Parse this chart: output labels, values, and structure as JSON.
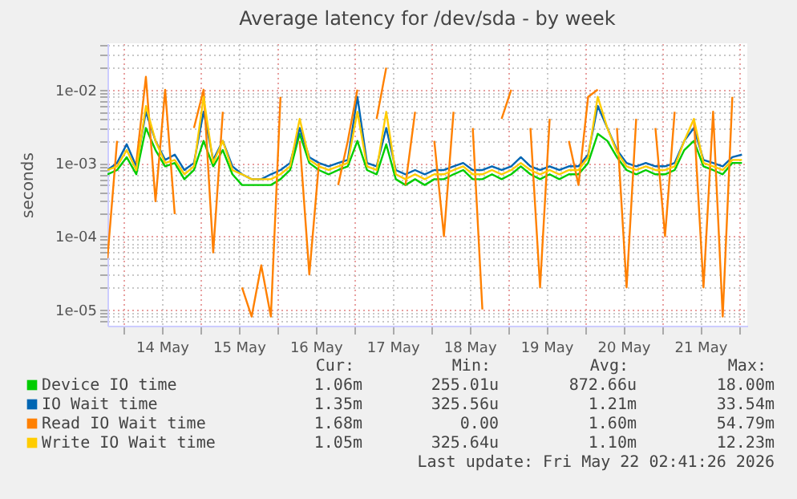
{
  "chart_data": {
    "type": "line",
    "title": "Average latency for /dev/sda - by week",
    "ylabel": "seconds",
    "log": "y",
    "grid": true,
    "legend": "bottom",
    "marker": "none",
    "line_style": "solid",
    "x": [
      "2026-05-13T19:00",
      "2026-05-13T22:00",
      "2026-05-14T01:00",
      "2026-05-14T04:00",
      "2026-05-14T07:00",
      "2026-05-14T10:00",
      "2026-05-14T13:00",
      "2026-05-14T16:00",
      "2026-05-14T19:00",
      "2026-05-14T22:00",
      "2026-05-15T01:00",
      "2026-05-15T04:00",
      "2026-05-15T07:00",
      "2026-05-15T10:00",
      "2026-05-15T13:00",
      "2026-05-15T16:00",
      "2026-05-15T19:00",
      "2026-05-15T22:00",
      "2026-05-16T01:00",
      "2026-05-16T04:00",
      "2026-05-16T07:00",
      "2026-05-16T10:00",
      "2026-05-16T13:00",
      "2026-05-16T16:00",
      "2026-05-16T19:00",
      "2026-05-16T22:00",
      "2026-05-17T01:00",
      "2026-05-17T04:00",
      "2026-05-17T07:00",
      "2026-05-17T10:00",
      "2026-05-17T13:00",
      "2026-05-17T16:00",
      "2026-05-17T19:00",
      "2026-05-17T22:00",
      "2026-05-18T01:00",
      "2026-05-18T04:00",
      "2026-05-18T07:00",
      "2026-05-18T10:00",
      "2026-05-18T13:00",
      "2026-05-18T16:00",
      "2026-05-18T19:00",
      "2026-05-18T22:00",
      "2026-05-19T01:00",
      "2026-05-19T04:00",
      "2026-05-19T07:00",
      "2026-05-19T10:00",
      "2026-05-19T13:00",
      "2026-05-19T16:00",
      "2026-05-19T19:00",
      "2026-05-19T22:00",
      "2026-05-20T01:00",
      "2026-05-20T04:00",
      "2026-05-20T07:00",
      "2026-05-20T10:00",
      "2026-05-20T13:00",
      "2026-05-20T16:00",
      "2026-05-20T19:00",
      "2026-05-20T22:00",
      "2026-05-21T01:00",
      "2026-05-21T04:00",
      "2026-05-21T07:00",
      "2026-05-21T10:00",
      "2026-05-21T13:00",
      "2026-05-21T16:00",
      "2026-05-21T19:00",
      "2026-05-21T22:00",
      "2026-05-22T01:00"
    ],
    "xlim": [
      "2026-05-13T19:00",
      "2026-05-22T02:40"
    ],
    "xticks": [
      {
        "value": "2026-05-14T00:00",
        "label": null
      },
      {
        "value": "2026-05-14T12:00",
        "label": "14 May"
      },
      {
        "value": "2026-05-15T00:00",
        "label": null
      },
      {
        "value": "2026-05-15T12:00",
        "label": "15 May"
      },
      {
        "value": "2026-05-16T00:00",
        "label": null
      },
      {
        "value": "2026-05-16T12:00",
        "label": "16 May"
      },
      {
        "value": "2026-05-17T00:00",
        "label": null
      },
      {
        "value": "2026-05-17T12:00",
        "label": "17 May"
      },
      {
        "value": "2026-05-18T00:00",
        "label": null
      },
      {
        "value": "2026-05-18T12:00",
        "label": "18 May"
      },
      {
        "value": "2026-05-19T00:00",
        "label": null
      },
      {
        "value": "2026-05-19T12:00",
        "label": "19 May"
      },
      {
        "value": "2026-05-20T00:00",
        "label": null
      },
      {
        "value": "2026-05-20T12:00",
        "label": "20 May"
      },
      {
        "value": "2026-05-21T00:00",
        "label": null
      },
      {
        "value": "2026-05-21T12:00",
        "label": "21 May"
      },
      {
        "value": "2026-05-22T00:00",
        "label": null
      }
    ],
    "ylim": [
      6e-06,
      0.043
    ],
    "yticks": [
      {
        "value": 7e-06,
        "label": null
      },
      {
        "value": 8e-06,
        "label": null
      },
      {
        "value": 9e-06,
        "label": null
      },
      {
        "value": 1e-05,
        "label": "1e-05"
      },
      {
        "value": 2e-05,
        "label": null
      },
      {
        "value": 3e-05,
        "label": null
      },
      {
        "value": 4e-05,
        "label": null
      },
      {
        "value": 5e-05,
        "label": null
      },
      {
        "value": 6e-05,
        "label": null
      },
      {
        "value": 7e-05,
        "label": null
      },
      {
        "value": 8e-05,
        "label": null
      },
      {
        "value": 9e-05,
        "label": null
      },
      {
        "value": 0.0001,
        "label": "1e-04"
      },
      {
        "value": 0.0002,
        "label": null
      },
      {
        "value": 0.0003,
        "label": null
      },
      {
        "value": 0.0004,
        "label": null
      },
      {
        "value": 0.0005,
        "label": null
      },
      {
        "value": 0.0006,
        "label": null
      },
      {
        "value": 0.0007,
        "label": null
      },
      {
        "value": 0.0008,
        "label": null
      },
      {
        "value": 0.0009,
        "label": null
      },
      {
        "value": 0.001,
        "label": "1e-03"
      },
      {
        "value": 0.002,
        "label": null
      },
      {
        "value": 0.003,
        "label": null
      },
      {
        "value": 0.004,
        "label": null
      },
      {
        "value": 0.005,
        "label": null
      },
      {
        "value": 0.006,
        "label": null
      },
      {
        "value": 0.007,
        "label": null
      },
      {
        "value": 0.008,
        "label": null
      },
      {
        "value": 0.009,
        "label": null
      },
      {
        "value": 0.01,
        "label": "1e-02"
      },
      {
        "value": 0.02,
        "label": null
      },
      {
        "value": 0.03,
        "label": null
      },
      {
        "value": 0.04,
        "label": null
      }
    ],
    "series": [
      {
        "name": "Device IO time",
        "color": "#00cc00",
        "values": [
          0.0007,
          0.0008,
          0.0012,
          0.0007,
          0.003,
          0.0015,
          0.0009,
          0.001,
          0.0006,
          0.0008,
          0.002,
          0.0009,
          0.0015,
          0.0007,
          0.0005,
          0.0005,
          0.0005,
          0.0005,
          0.0006,
          0.0008,
          0.0025,
          0.001,
          0.0008,
          0.0007,
          0.0008,
          0.0009,
          0.002,
          0.0008,
          0.0007,
          0.0018,
          0.0006,
          0.0005,
          0.0006,
          0.0005,
          0.0006,
          0.0006,
          0.0007,
          0.0008,
          0.0006,
          0.0006,
          0.0007,
          0.0006,
          0.0007,
          0.0009,
          0.0007,
          0.0006,
          0.0007,
          0.0006,
          0.0007,
          0.0007,
          0.001,
          0.0025,
          0.002,
          0.0012,
          0.0008,
          0.0007,
          0.0008,
          0.0007,
          0.0007,
          0.0008,
          0.0015,
          0.002,
          0.0009,
          0.0008,
          0.0007,
          0.001,
          0.001
        ]
      },
      {
        "name": "IO Wait time",
        "color": "#0066b3",
        "values": [
          0.0008,
          0.001,
          0.0018,
          0.0009,
          0.005,
          0.002,
          0.0011,
          0.0013,
          0.0008,
          0.001,
          0.005,
          0.0011,
          0.002,
          0.0009,
          0.0007,
          0.0006,
          0.0006,
          0.0007,
          0.0008,
          0.001,
          0.003,
          0.0012,
          0.001,
          0.0009,
          0.001,
          0.0011,
          0.008,
          0.001,
          0.0009,
          0.003,
          0.0008,
          0.0007,
          0.0008,
          0.0007,
          0.0008,
          0.0008,
          0.0009,
          0.001,
          0.0008,
          0.0008,
          0.0009,
          0.0008,
          0.0009,
          0.0012,
          0.0009,
          0.0008,
          0.0009,
          0.0008,
          0.0009,
          0.0009,
          0.0013,
          0.006,
          0.003,
          0.0015,
          0.001,
          0.0009,
          0.001,
          0.0009,
          0.0009,
          0.001,
          0.002,
          0.003,
          0.0011,
          0.001,
          0.0009,
          0.0012,
          0.0013
        ]
      },
      {
        "name": "Read IO Wait time",
        "color": "#ff8000",
        "values": [
          5e-05,
          0.002,
          null,
          0.001,
          0.015,
          0.0003,
          0.01,
          0.0002,
          null,
          0.003,
          0.01,
          6e-05,
          0.005,
          null,
          2e-05,
          8e-06,
          4e-05,
          8e-06,
          0.008,
          null,
          0.002,
          3e-05,
          0.001,
          null,
          0.0005,
          0.002,
          0.01,
          null,
          0.004,
          0.02,
          null,
          0.0005,
          0.005,
          null,
          0.002,
          0.0001,
          0.005,
          null,
          0.003,
          1e-05,
          null,
          0.004,
          0.01,
          null,
          0.003,
          2e-05,
          0.004,
          null,
          0.002,
          0.0005,
          0.008,
          0.01,
          null,
          0.003,
          2e-05,
          0.004,
          null,
          0.003,
          0.0001,
          0.005,
          null,
          0.004,
          2e-05,
          0.005,
          8e-06,
          0.008,
          null
        ]
      },
      {
        "name": "Write IO Wait time",
        "color": "#ffcc00",
        "values": [
          0.0008,
          0.0009,
          0.0015,
          0.0008,
          0.006,
          0.002,
          0.001,
          0.0011,
          0.0007,
          0.0009,
          0.008,
          0.001,
          0.002,
          0.0008,
          0.0007,
          0.0006,
          0.0006,
          0.0006,
          0.0007,
          0.0009,
          0.004,
          0.0011,
          0.0009,
          0.0008,
          0.0009,
          0.001,
          0.005,
          0.0009,
          0.0008,
          0.005,
          0.0007,
          0.0006,
          0.0007,
          0.0006,
          0.0007,
          0.0007,
          0.0008,
          0.0009,
          0.0007,
          0.0007,
          0.0008,
          0.0007,
          0.0008,
          0.001,
          0.0008,
          0.0007,
          0.0008,
          0.0007,
          0.0008,
          0.0008,
          0.0012,
          0.008,
          0.003,
          0.0014,
          0.0009,
          0.0008,
          0.0009,
          0.0008,
          0.0008,
          0.0009,
          0.002,
          0.004,
          0.001,
          0.0009,
          0.0008,
          0.0011,
          0.0011
        ]
      }
    ],
    "annotations": [
      "Cur:",
      "Min:",
      "Avg:",
      "Max:",
      "1.06m",
      "255.01u",
      "872.66u",
      "18.00m",
      "1.35m",
      "325.56u",
      "1.21m",
      "33.54m",
      "1.68m",
      "0.00",
      "1.60m",
      "54.79m",
      "1.05m",
      "325.64u",
      "1.10m",
      "12.23m",
      "Last update: Fri May 22 02:41:26 2026"
    ]
  }
}
